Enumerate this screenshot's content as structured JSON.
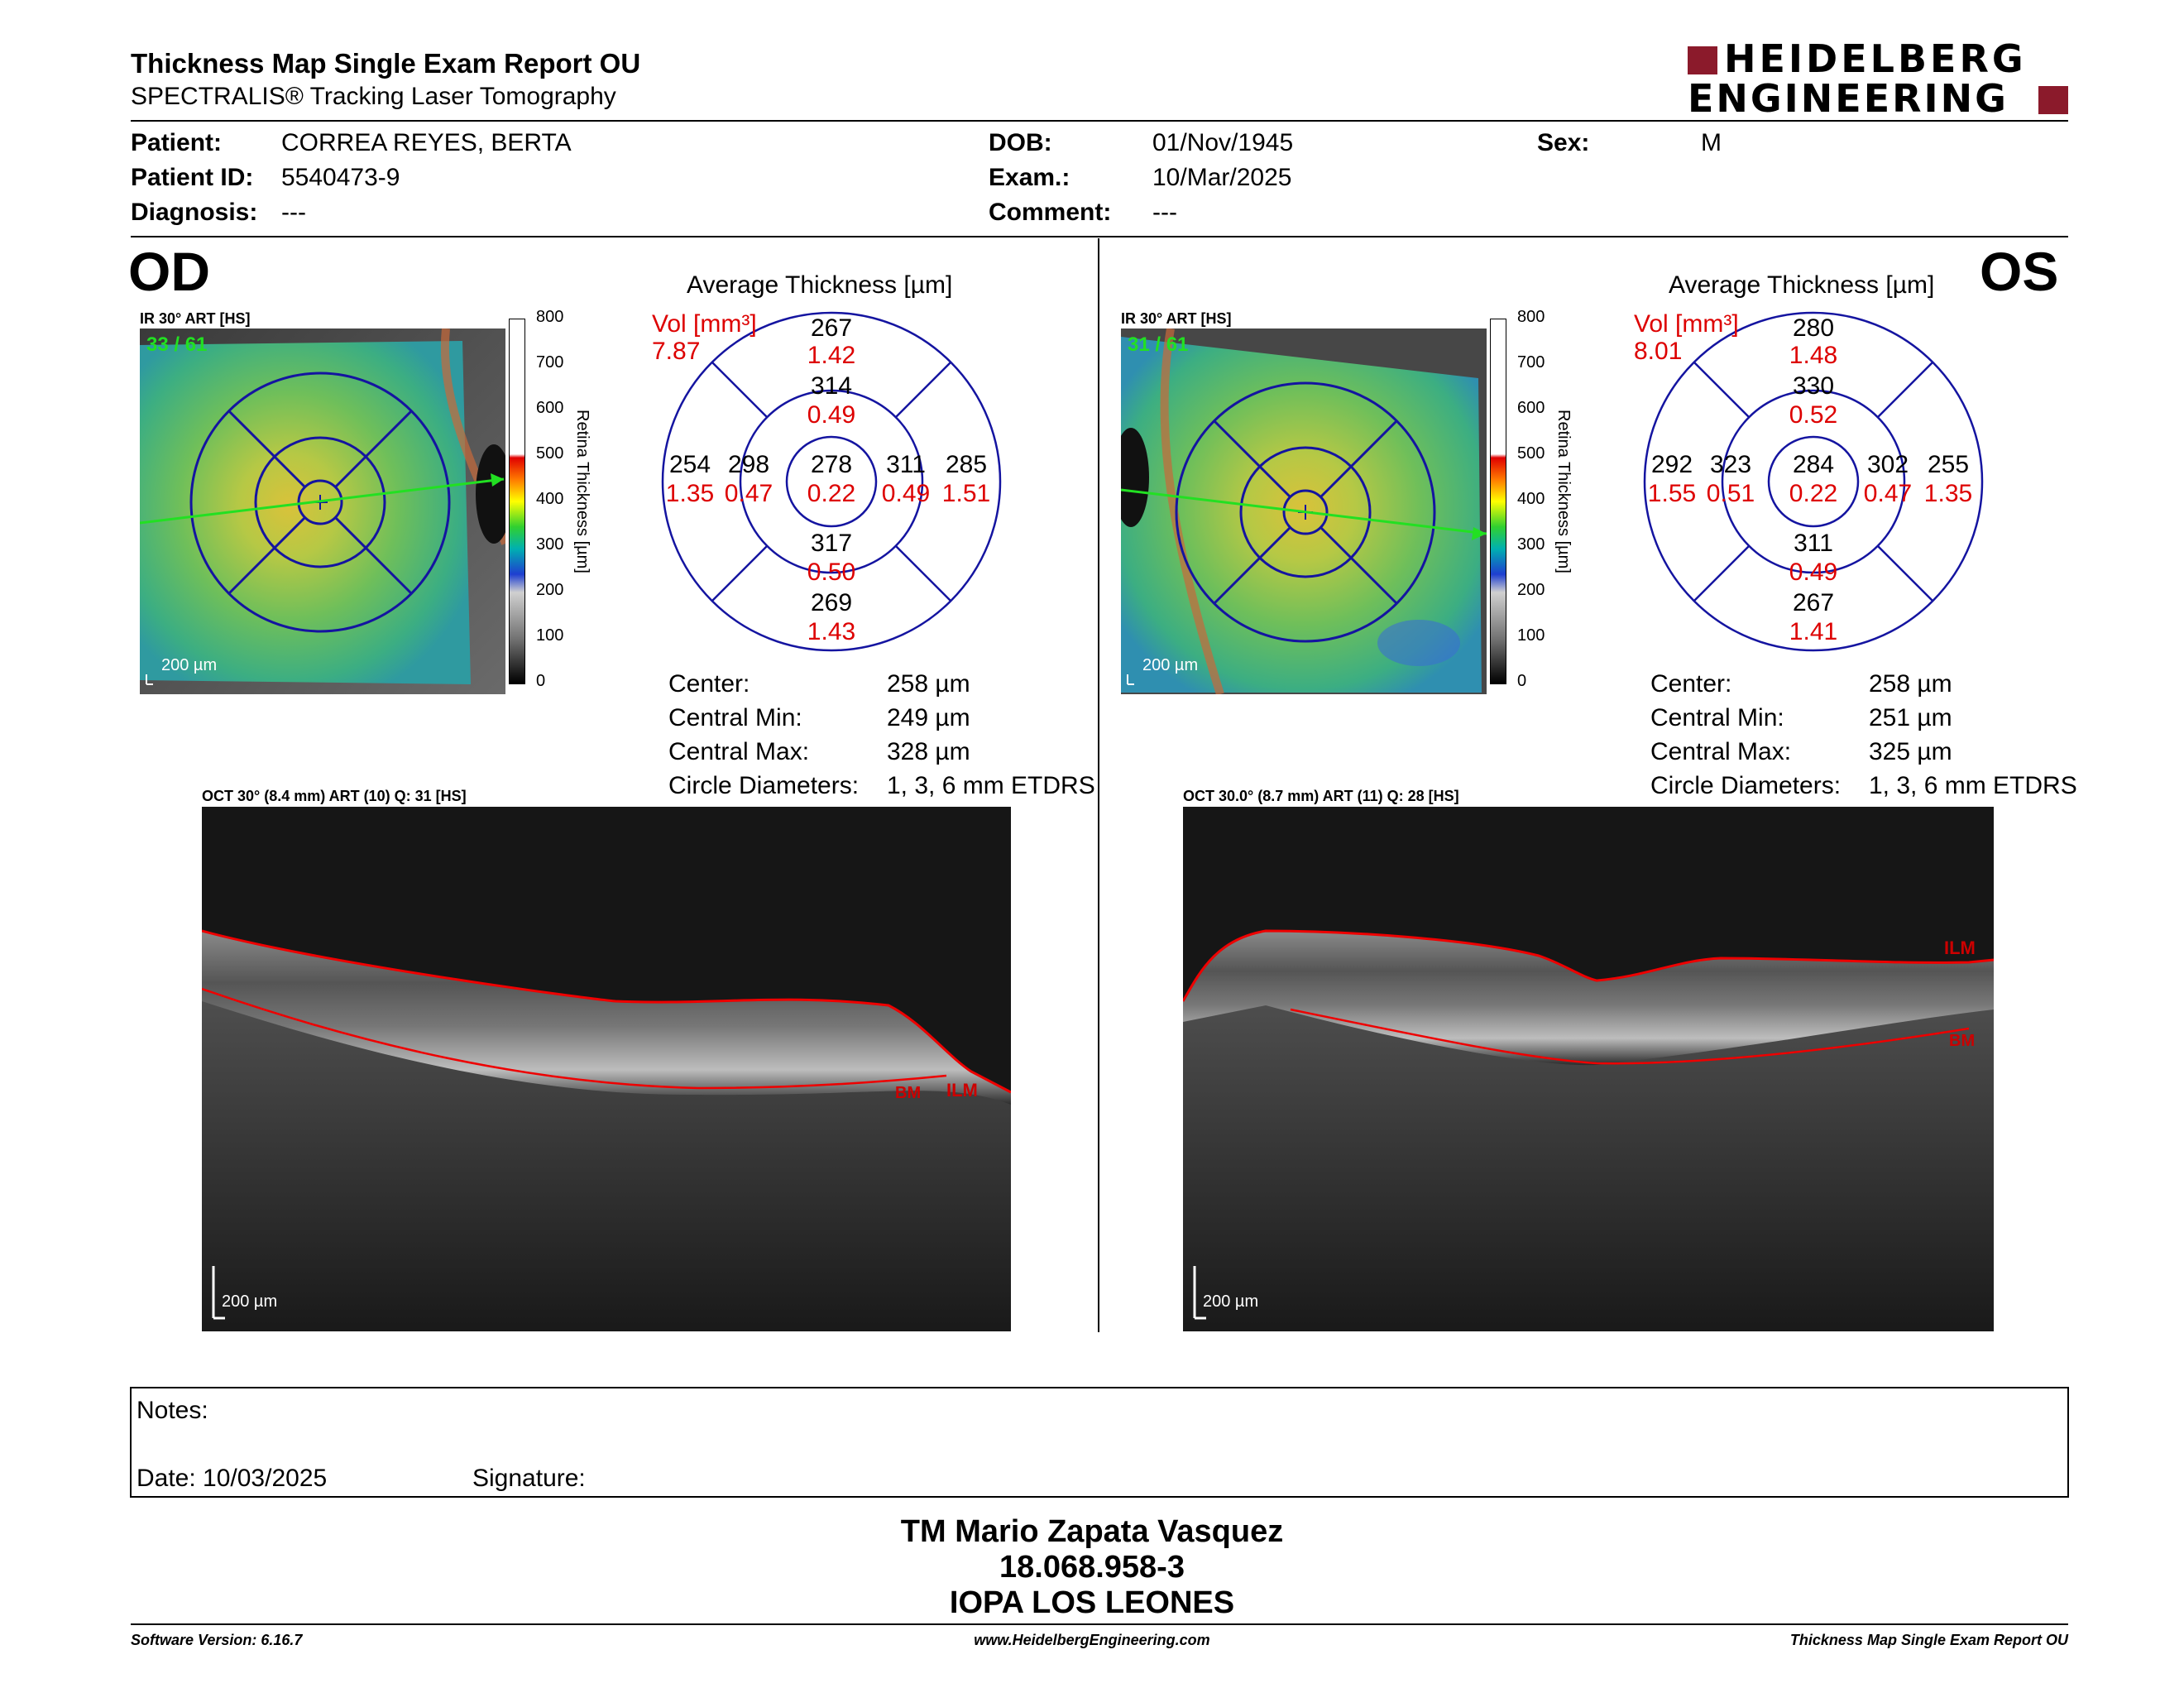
{
  "header": {
    "title": "Thickness Map Single Exam Report OU",
    "subtitle": "SPECTRALIS® Tracking Laser Tomography",
    "logo_line1": "HEIDELBERG",
    "logo_line2": "ENGINEERING",
    "brand_color": "#8b1a2b"
  },
  "patient": {
    "patient_label": "Patient:",
    "patient_value": "CORREA REYES, BERTA",
    "id_label": "Patient ID:",
    "id_value": "5540473-9",
    "diag_label": "Diagnosis:",
    "diag_value": "---",
    "dob_label": "DOB:",
    "dob_value": "01/Nov/1945",
    "exam_label": "Exam.:",
    "exam_value": "10/Mar/2025",
    "comment_label": "Comment:",
    "comment_value": "---",
    "sex_label": "Sex:",
    "sex_value": "M"
  },
  "od": {
    "eye": "OD",
    "ir_label": "IR 30° ART [HS]",
    "frames": "33 / 61",
    "scalebar": "200 µm",
    "avg_title": "Average Thickness [µm]",
    "vol_label": "Vol [mm³]",
    "vol_value": "7.87",
    "grid": {
      "center": [
        "278",
        "0.22"
      ],
      "inner_sup": [
        "314",
        "0.49"
      ],
      "inner_inf": [
        "317",
        "0.50"
      ],
      "inner_temp": [
        "298",
        "0.47"
      ],
      "inner_nas": [
        "311",
        "0.49"
      ],
      "outer_sup": [
        "267",
        "1.42"
      ],
      "outer_inf": [
        "269",
        "1.43"
      ],
      "outer_temp": [
        "254",
        "1.35"
      ],
      "outer_nas": [
        "285",
        "1.51"
      ]
    },
    "stats": [
      {
        "label": "Center:",
        "value": "258 µm"
      },
      {
        "label": "Central Min:",
        "value": "249 µm"
      },
      {
        "label": "Central Max:",
        "value": "328 µm"
      },
      {
        "label": "Circle Diameters:",
        "value": "1, 3, 6 mm ETDRS"
      }
    ],
    "oct_label": "OCT 30° (8.4 mm) ART (10) Q: 31 [HS]",
    "oct_scalebar": "200 µm",
    "ilm": "ILM",
    "bm": "BM"
  },
  "os": {
    "eye": "OS",
    "ir_label": "IR 30° ART [HS]",
    "frames": "31 / 61",
    "scalebar": "200 µm",
    "avg_title": "Average Thickness [µm]",
    "vol_label": "Vol [mm³]",
    "vol_value": "8.01",
    "grid": {
      "center": [
        "284",
        "0.22"
      ],
      "inner_sup": [
        "330",
        "0.52"
      ],
      "inner_inf": [
        "311",
        "0.49"
      ],
      "inner_temp": [
        "323",
        "0.51"
      ],
      "inner_nas": [
        "302",
        "0.47"
      ],
      "outer_sup": [
        "280",
        "1.48"
      ],
      "outer_inf": [
        "267",
        "1.41"
      ],
      "outer_temp": [
        "292",
        "1.55"
      ],
      "outer_nas": [
        "255",
        "1.35"
      ]
    },
    "stats": [
      {
        "label": "Center:",
        "value": "258 µm"
      },
      {
        "label": "Central Min:",
        "value": "251 µm"
      },
      {
        "label": "Central Max:",
        "value": "325 µm"
      },
      {
        "label": "Circle Diameters:",
        "value": "1, 3, 6 mm ETDRS"
      }
    ],
    "oct_label": "OCT 30.0° (8.7 mm) ART (11) Q: 28 [HS]",
    "oct_scalebar": "200 µm",
    "ilm": "ILM",
    "bm": "BM"
  },
  "colorbar": {
    "ticks": [
      "800",
      "700",
      "600",
      "500",
      "400",
      "300",
      "200",
      "100",
      "0"
    ],
    "label": "Retina  Thickness [µm]"
  },
  "notes": {
    "notes_label": "Notes:",
    "date_label": "Date: 10/03/2025",
    "signature_label": "Signature:"
  },
  "signature_block": {
    "name": "TM Mario Zapata Vasquez",
    "rut": "18.068.958-3",
    "place": "IOPA LOS LEONES"
  },
  "footer": {
    "software": "Software Version: 6.16.7",
    "website": "www.HeidelbergEngineering.com",
    "report": "Thickness Map Single Exam Report OU"
  }
}
